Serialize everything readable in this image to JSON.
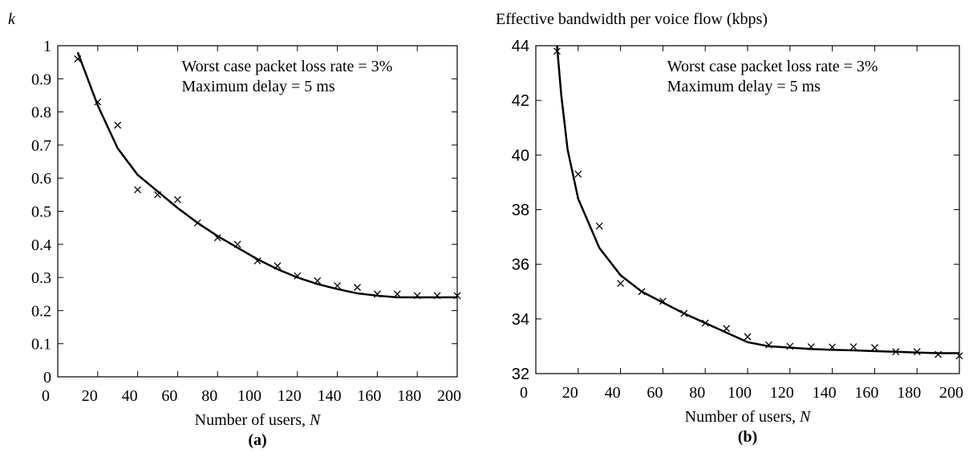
{
  "chart_data": [
    {
      "type": "scatter",
      "ylabel": "k",
      "xlabel": "Number of users,",
      "xlabel_var": "N",
      "caption": "(a)",
      "annotations": [
        "Worst case packet loss rate = 3%",
        "Maximum delay = 5 ms"
      ],
      "xlim": [
        0,
        200
      ],
      "xticks": [
        0,
        20,
        40,
        60,
        80,
        100,
        120,
        140,
        160,
        180,
        200
      ],
      "ylim": [
        0,
        1
      ],
      "yticks": [
        0,
        0.1,
        0.2,
        0.3,
        0.4,
        0.5,
        0.6,
        0.7,
        0.8,
        0.9,
        1
      ],
      "color": "#000000",
      "points": {
        "x": [
          10,
          20,
          30,
          40,
          50,
          60,
          70,
          80,
          90,
          100,
          110,
          120,
          130,
          140,
          150,
          160,
          170,
          180,
          190,
          200
        ],
        "y": [
          0.96,
          0.83,
          0.76,
          0.565,
          0.55,
          0.535,
          0.465,
          0.42,
          0.4,
          0.35,
          0.335,
          0.305,
          0.29,
          0.275,
          0.27,
          0.25,
          0.25,
          0.245,
          0.245,
          0.245
        ]
      },
      "fit": {
        "x": [
          10,
          15,
          20,
          30,
          40,
          50,
          60,
          70,
          80,
          90,
          100,
          110,
          120,
          130,
          140,
          150,
          160,
          170,
          180,
          190,
          200
        ],
        "y": [
          0.98,
          0.9,
          0.82,
          0.69,
          0.61,
          0.56,
          0.51,
          0.465,
          0.425,
          0.39,
          0.355,
          0.325,
          0.3,
          0.28,
          0.265,
          0.252,
          0.245,
          0.24,
          0.24,
          0.24,
          0.24
        ]
      }
    },
    {
      "type": "scatter",
      "ylabel": "Effective bandwidth per voice flow (kbps)",
      "xlabel": "Number of users,",
      "xlabel_var": "N",
      "caption": "(b)",
      "annotations": [
        "Worst case packet loss rate = 3%",
        "Maximum delay = 5 ms"
      ],
      "xlim": [
        0,
        200
      ],
      "xticks": [
        0,
        20,
        40,
        60,
        80,
        100,
        120,
        140,
        160,
        180,
        200
      ],
      "ylim": [
        32,
        44
      ],
      "yticks": [
        32,
        34,
        36,
        38,
        40,
        42,
        44
      ],
      "color": "#000000",
      "points": {
        "x": [
          10,
          20,
          30,
          40,
          50,
          60,
          70,
          80,
          90,
          100,
          110,
          120,
          130,
          140,
          150,
          160,
          170,
          180,
          190,
          200
        ],
        "y": [
          43.8,
          39.3,
          37.4,
          35.3,
          35.0,
          34.65,
          34.2,
          33.85,
          33.65,
          33.35,
          33.05,
          33.0,
          32.98,
          32.97,
          32.98,
          32.95,
          32.8,
          32.8,
          32.7,
          32.65
        ]
      },
      "fit": {
        "x": [
          10,
          12,
          15,
          20,
          30,
          40,
          50,
          60,
          70,
          80,
          90,
          100,
          110,
          120,
          130,
          140,
          150,
          160,
          170,
          180,
          190,
          200
        ],
        "y": [
          44,
          42.2,
          40.2,
          38.4,
          36.6,
          35.6,
          35.0,
          34.6,
          34.2,
          33.85,
          33.5,
          33.15,
          33.0,
          32.95,
          32.9,
          32.87,
          32.85,
          32.82,
          32.8,
          32.77,
          32.75,
          32.75
        ]
      }
    }
  ]
}
